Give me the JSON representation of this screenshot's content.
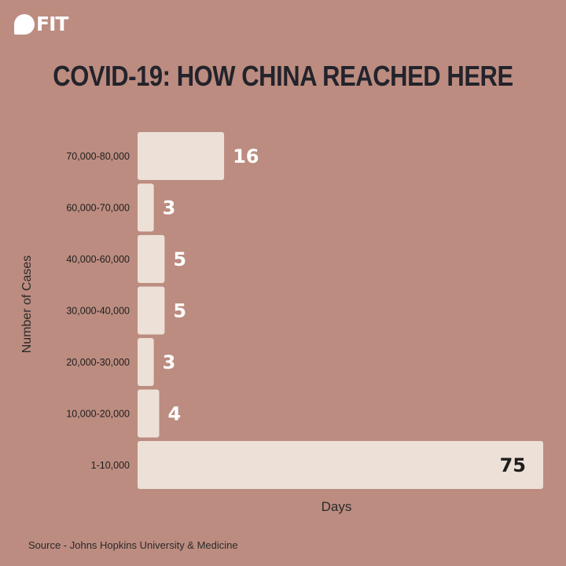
{
  "brand": {
    "logo_text": "FIT"
  },
  "source": "Source - Johns Hopkins University & Medicine",
  "colors": {
    "background": "#bc8c80",
    "bar": "#ede0d6",
    "title": "#23232b",
    "value_label_outside": "#ffffff",
    "value_label_inside": "#1e1e1e"
  },
  "chart_data": {
    "type": "bar",
    "orientation": "horizontal",
    "title": "COVID-19: HOW CHINA REACHED HERE",
    "xlabel": "Days",
    "ylabel": "Number of Cases",
    "categories": [
      "70,000-80,000",
      "60,000-70,000",
      "40,000-60,000",
      "30,000-40,000",
      "20,000-30,000",
      "10,000-20,000",
      "1-10,000"
    ],
    "values": [
      16,
      3,
      5,
      5,
      3,
      4,
      75
    ],
    "xlim": [
      0,
      75
    ],
    "grid": false,
    "legend": "none"
  }
}
